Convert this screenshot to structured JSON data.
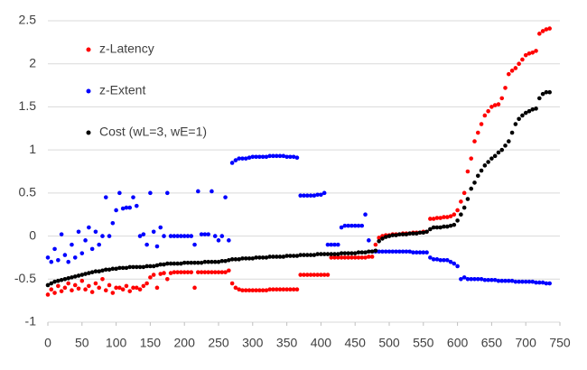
{
  "chart_data": {
    "type": "scatter",
    "xlim": [
      0,
      750
    ],
    "xticks": [
      0,
      50,
      100,
      150,
      200,
      250,
      300,
      350,
      400,
      450,
      500,
      550,
      600,
      650,
      700,
      750
    ],
    "ylim": [
      -1,
      2.5
    ],
    "yticks": [
      -1,
      -0.5,
      0,
      0.5,
      1,
      1.5,
      2,
      2.5
    ],
    "grid": true,
    "legend": "upper left",
    "x": [
      0,
      5,
      10,
      15,
      20,
      25,
      30,
      35,
      40,
      45,
      50,
      55,
      60,
      65,
      70,
      75,
      80,
      85,
      90,
      95,
      100,
      105,
      110,
      115,
      120,
      125,
      130,
      135,
      140,
      145,
      150,
      155,
      160,
      165,
      170,
      175,
      180,
      185,
      190,
      195,
      200,
      205,
      210,
      215,
      220,
      225,
      230,
      235,
      240,
      245,
      250,
      255,
      260,
      265,
      270,
      275,
      280,
      285,
      290,
      295,
      300,
      305,
      310,
      315,
      320,
      325,
      330,
      335,
      340,
      345,
      350,
      355,
      360,
      365,
      370,
      375,
      380,
      385,
      390,
      395,
      400,
      405,
      410,
      415,
      420,
      425,
      430,
      435,
      440,
      445,
      450,
      455,
      460,
      465,
      470,
      475,
      480,
      485,
      490,
      495,
      500,
      505,
      510,
      515,
      520,
      525,
      530,
      535,
      540,
      545,
      550,
      555,
      560,
      565,
      570,
      575,
      580,
      585,
      590,
      595,
      600,
      605,
      610,
      615,
      620,
      625,
      630,
      635,
      640,
      645,
      650,
      655,
      660,
      665,
      670,
      675,
      680,
      685,
      690,
      695,
      700,
      705,
      710,
      715,
      720,
      725,
      730,
      735
    ],
    "series": [
      {
        "name": "z-Latency",
        "color": "#ff0000",
        "values": [
          -0.68,
          -0.62,
          -0.66,
          -0.58,
          -0.64,
          -0.6,
          -0.55,
          -0.63,
          -0.57,
          -0.61,
          -0.52,
          -0.62,
          -0.58,
          -0.65,
          -0.55,
          -0.6,
          -0.5,
          -0.63,
          -0.57,
          -0.66,
          -0.6,
          -0.6,
          -0.62,
          -0.58,
          -0.64,
          -0.6,
          -0.6,
          -0.62,
          -0.58,
          -0.55,
          -0.48,
          -0.45,
          -0.6,
          -0.44,
          -0.43,
          -0.5,
          -0.43,
          -0.42,
          -0.42,
          -0.42,
          -0.42,
          -0.42,
          -0.42,
          -0.6,
          -0.42,
          -0.42,
          -0.42,
          -0.42,
          -0.42,
          -0.42,
          -0.42,
          -0.42,
          -0.42,
          -0.4,
          -0.55,
          -0.6,
          -0.62,
          -0.63,
          -0.63,
          -0.63,
          -0.63,
          -0.63,
          -0.63,
          -0.63,
          -0.63,
          -0.62,
          -0.62,
          -0.62,
          -0.62,
          -0.62,
          -0.62,
          -0.62,
          -0.62,
          -0.62,
          -0.45,
          -0.45,
          -0.45,
          -0.45,
          -0.45,
          -0.45,
          -0.45,
          -0.45,
          -0.45,
          -0.25,
          -0.25,
          -0.25,
          -0.25,
          -0.25,
          -0.25,
          -0.25,
          -0.25,
          -0.25,
          -0.25,
          -0.25,
          -0.24,
          -0.24,
          -0.1,
          -0.02,
          0,
          0.01,
          0.01,
          0.02,
          0.02,
          0.02,
          0.03,
          0.03,
          0.03,
          0.04,
          0.04,
          0.04,
          0.05,
          0.05,
          0.2,
          0.2,
          0.21,
          0.21,
          0.22,
          0.22,
          0.23,
          0.25,
          0.3,
          0.4,
          0.5,
          0.75,
          0.9,
          1.1,
          1.2,
          1.3,
          1.4,
          1.45,
          1.5,
          1.52,
          1.53,
          1.6,
          1.72,
          1.88,
          1.92,
          1.95,
          2.0,
          2.05,
          2.1,
          2.12,
          2.13,
          2.15,
          2.35,
          2.38,
          2.4,
          2.41
        ]
      },
      {
        "name": "z-Extent",
        "color": "#0000ff",
        "values": [
          -0.25,
          -0.3,
          -0.15,
          -0.28,
          0.02,
          -0.22,
          -0.3,
          -0.1,
          -0.25,
          0.05,
          -0.2,
          -0.05,
          0.1,
          -0.15,
          0.05,
          -0.1,
          0.0,
          0.45,
          0.0,
          0.15,
          0.3,
          0.5,
          0.32,
          0.33,
          0.33,
          0.45,
          0.35,
          0.0,
          0.02,
          -0.1,
          0.5,
          0.05,
          -0.12,
          0.1,
          0.0,
          0.5,
          0.0,
          0.0,
          0.0,
          0.0,
          0.0,
          0.0,
          0.0,
          -0.1,
          0.52,
          0.02,
          0.02,
          0.02,
          0.52,
          0.0,
          -0.05,
          0.0,
          0.45,
          -0.05,
          0.85,
          0.88,
          0.9,
          0.9,
          0.9,
          0.91,
          0.92,
          0.92,
          0.92,
          0.92,
          0.92,
          0.93,
          0.93,
          0.93,
          0.93,
          0.93,
          0.92,
          0.92,
          0.92,
          0.91,
          0.47,
          0.47,
          0.47,
          0.47,
          0.47,
          0.48,
          0.48,
          0.5,
          -0.1,
          -0.1,
          -0.1,
          -0.1,
          0.1,
          0.12,
          0.12,
          0.12,
          0.12,
          0.12,
          0.12,
          0.25,
          -0.05,
          -0.18,
          -0.18,
          -0.18,
          -0.18,
          -0.18,
          -0.18,
          -0.18,
          -0.18,
          -0.18,
          -0.18,
          -0.18,
          -0.18,
          -0.19,
          -0.19,
          -0.19,
          -0.19,
          -0.19,
          -0.25,
          -0.27,
          -0.27,
          -0.28,
          -0.28,
          -0.28,
          -0.3,
          -0.32,
          -0.35,
          -0.5,
          -0.48,
          -0.5,
          -0.5,
          -0.5,
          -0.5,
          -0.5,
          -0.51,
          -0.51,
          -0.51,
          -0.51,
          -0.52,
          -0.52,
          -0.52,
          -0.52,
          -0.52,
          -0.53,
          -0.53,
          -0.53,
          -0.53,
          -0.53,
          -0.53,
          -0.54,
          -0.54,
          -0.54,
          -0.55,
          -0.55
        ]
      },
      {
        "name": "Cost (wL=3, wE=1)",
        "color": "#000000",
        "values": [
          -0.57,
          -0.55,
          -0.53,
          -0.52,
          -0.51,
          -0.5,
          -0.49,
          -0.48,
          -0.47,
          -0.46,
          -0.45,
          -0.44,
          -0.43,
          -0.42,
          -0.41,
          -0.41,
          -0.4,
          -0.39,
          -0.39,
          -0.38,
          -0.38,
          -0.37,
          -0.37,
          -0.37,
          -0.36,
          -0.36,
          -0.36,
          -0.36,
          -0.36,
          -0.35,
          -0.35,
          -0.35,
          -0.34,
          -0.33,
          -0.33,
          -0.32,
          -0.32,
          -0.32,
          -0.32,
          -0.32,
          -0.31,
          -0.31,
          -0.31,
          -0.31,
          -0.31,
          -0.31,
          -0.3,
          -0.3,
          -0.3,
          -0.3,
          -0.3,
          -0.29,
          -0.29,
          -0.28,
          -0.27,
          -0.27,
          -0.27,
          -0.26,
          -0.26,
          -0.26,
          -0.26,
          -0.25,
          -0.25,
          -0.25,
          -0.25,
          -0.24,
          -0.24,
          -0.24,
          -0.24,
          -0.24,
          -0.23,
          -0.23,
          -0.23,
          -0.23,
          -0.22,
          -0.22,
          -0.22,
          -0.22,
          -0.22,
          -0.21,
          -0.21,
          -0.21,
          -0.21,
          -0.21,
          -0.21,
          -0.21,
          -0.2,
          -0.2,
          -0.2,
          -0.2,
          -0.2,
          -0.19,
          -0.19,
          -0.19,
          -0.18,
          -0.18,
          -0.17,
          -0.06,
          -0.03,
          -0.01,
          0,
          0.01,
          0.01,
          0.02,
          0.02,
          0.02,
          0.03,
          0.03,
          0.03,
          0.04,
          0.04,
          0.05,
          0.08,
          0.1,
          0.1,
          0.1,
          0.11,
          0.11,
          0.12,
          0.13,
          0.18,
          0.25,
          0.33,
          0.43,
          0.55,
          0.62,
          0.7,
          0.76,
          0.82,
          0.86,
          0.9,
          0.93,
          0.97,
          1.0,
          1.05,
          1.1,
          1.2,
          1.3,
          1.36,
          1.4,
          1.43,
          1.45,
          1.47,
          1.48,
          1.6,
          1.65,
          1.67,
          1.67
        ]
      }
    ]
  }
}
